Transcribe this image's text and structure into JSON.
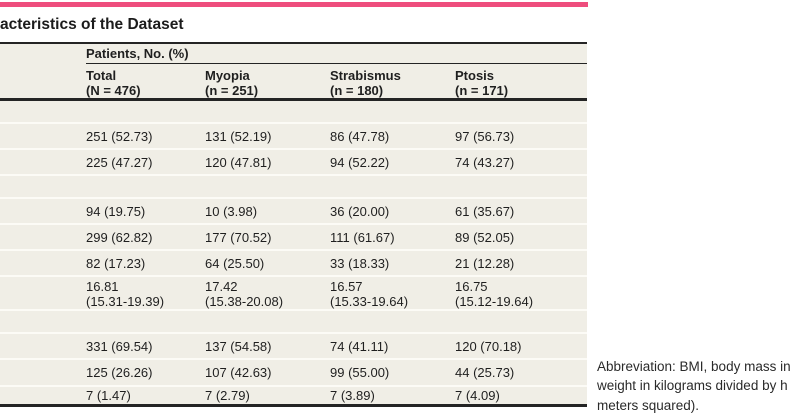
{
  "page": {
    "title_fragment": "acteristics of the Dataset"
  },
  "colors": {
    "accent_rule": "#ee4d7d",
    "table_background": "#f0eee6",
    "dark_rule": "#242424",
    "row_separator": "#fcfbf6"
  },
  "table": {
    "spanner_header": "Patients, No. (%)",
    "columns": [
      {
        "label": "Total\n(N = 476)"
      },
      {
        "label": "Myopia\n(n = 251)"
      },
      {
        "label": "Strabismus\n(n = 180)"
      },
      {
        "label": "Ptosis\n(n = 171)"
      }
    ],
    "rows": [
      {
        "type": "section",
        "cells": [
          "",
          "",
          "",
          ""
        ]
      },
      {
        "type": "data",
        "cells": [
          "251 (52.73)",
          "131 (52.19)",
          "86 (47.78)",
          "97 (56.73)"
        ]
      },
      {
        "type": "data",
        "cells": [
          "225 (47.27)",
          "120 (47.81)",
          "94 (52.22)",
          "74 (43.27)"
        ]
      },
      {
        "type": "section",
        "cells": [
          "",
          "",
          "",
          ""
        ]
      },
      {
        "type": "data",
        "cells": [
          "94 (19.75)",
          "10 (3.98)",
          "36 (20.00)",
          "61 (35.67)"
        ]
      },
      {
        "type": "data",
        "cells": [
          "299 (62.82)",
          "177 (70.52)",
          "111 (61.67)",
          "89 (52.05)"
        ]
      },
      {
        "type": "data",
        "cells": [
          "82 (17.23)",
          "64 (25.50)",
          "33 (18.33)",
          "21 (12.28)"
        ]
      },
      {
        "type": "data2line",
        "cells": [
          "16.81\n(15.31-19.39)",
          "17.42\n(15.38-20.08)",
          "16.57\n(15.33-19.64)",
          "16.75\n(15.12-19.64)"
        ]
      },
      {
        "type": "section",
        "cells": [
          "",
          "",
          "",
          ""
        ]
      },
      {
        "type": "data",
        "cells": [
          "331 (69.54)",
          "137 (54.58)",
          "74 (41.11)",
          "120 (70.18)"
        ]
      },
      {
        "type": "data",
        "cells": [
          "125 (26.26)",
          "107 (42.63)",
          "99 (55.00)",
          "44 (25.73)"
        ]
      },
      {
        "type": "data",
        "cells": [
          "7 (1.47)",
          "7 (2.79)",
          "7 (3.89)",
          "7 (4.09)"
        ]
      }
    ]
  },
  "footnote": {
    "lines": [
      "Abbreviation: BMI, body mass in",
      "weight in kilograms divided by h",
      "meters squared)."
    ]
  }
}
